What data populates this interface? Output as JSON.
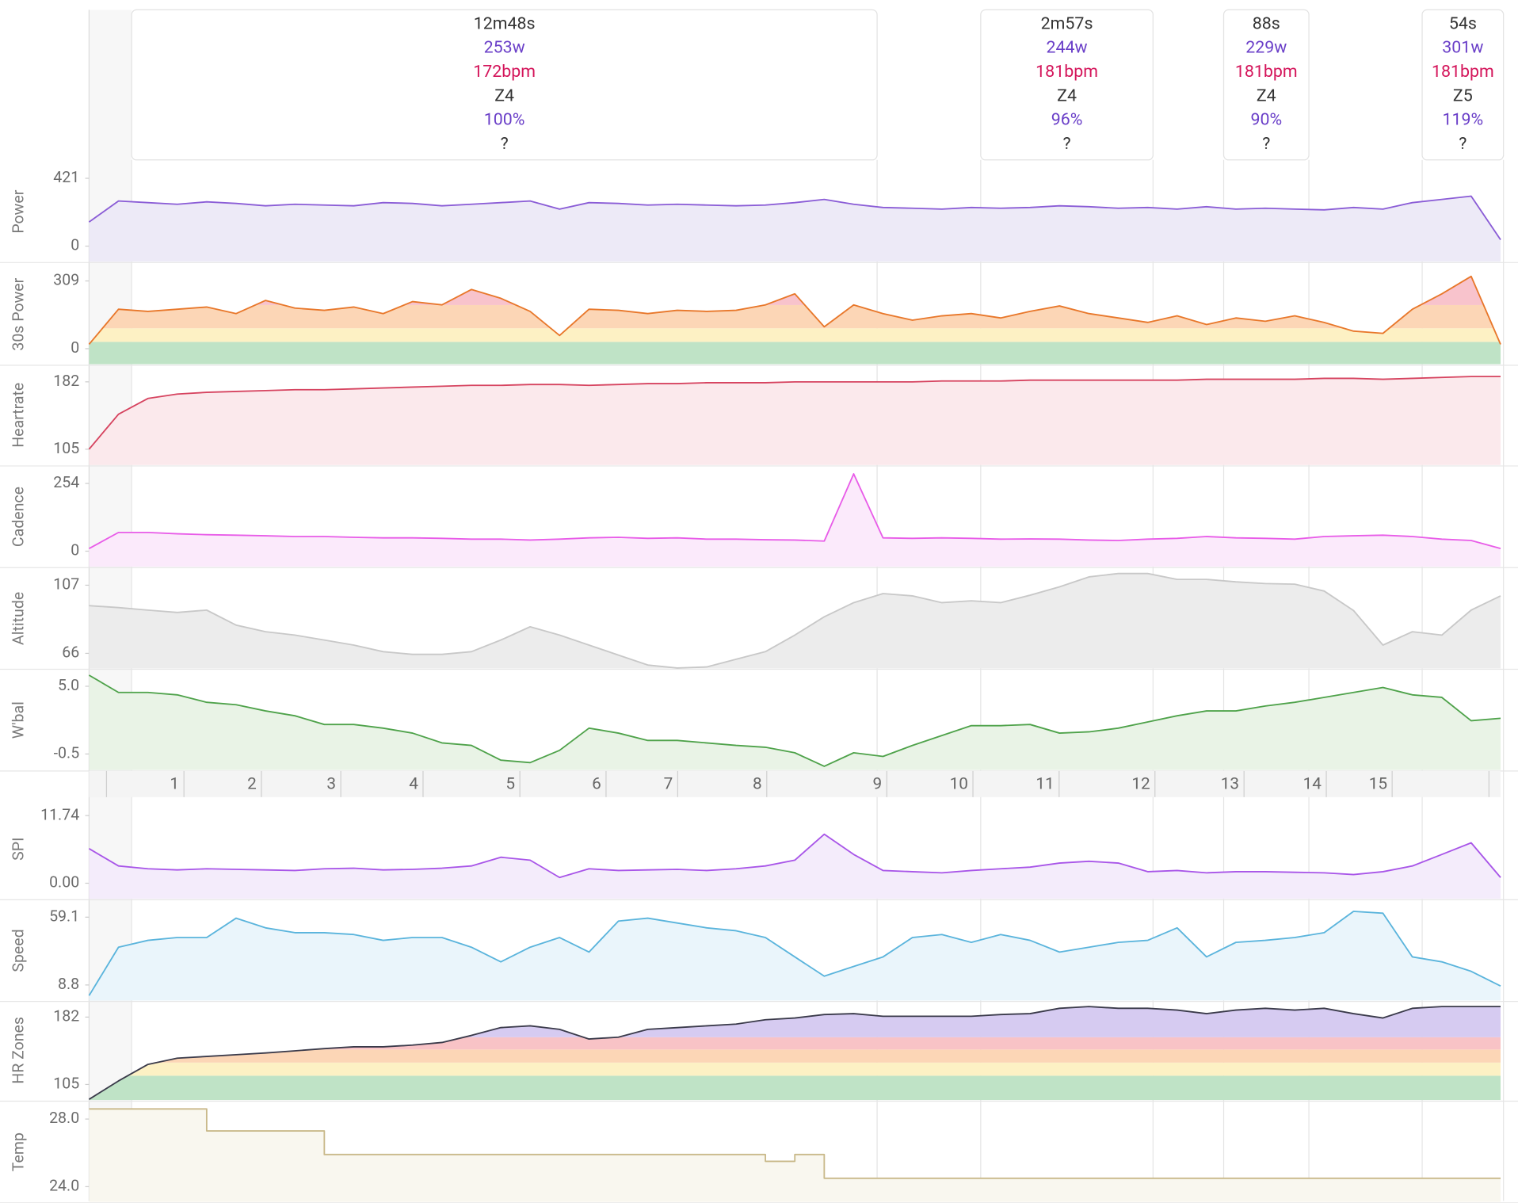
{
  "intervals": [
    {
      "duration": "12m48s",
      "power": "253w",
      "heartrate": "172bpm",
      "zone": "Z4",
      "percent": "100%",
      "note": "?"
    },
    {
      "duration": "2m57s",
      "power": "244w",
      "heartrate": "181bpm",
      "zone": "Z4",
      "percent": "96%",
      "note": "?"
    },
    {
      "duration": "88s",
      "power": "229w",
      "heartrate": "181bpm",
      "zone": "Z4",
      "percent": "90%",
      "note": "?"
    },
    {
      "duration": "54s",
      "power": "301w",
      "heartrate": "181bpm",
      "zone": "Z5",
      "percent": "119%",
      "note": "?"
    }
  ],
  "panels": [
    {
      "type": "line",
      "label": "Power",
      "color": "#8a5cd6",
      "fill": "#edeaf7",
      "ylim": [
        -96,
        523
      ],
      "yticks": [
        421,
        0
      ],
      "values": [
        150,
        280,
        270,
        260,
        275,
        265,
        250,
        260,
        255,
        250,
        270,
        265,
        250,
        260,
        270,
        280,
        230,
        270,
        265,
        255,
        260,
        255,
        250,
        255,
        270,
        290,
        260,
        240,
        235,
        230,
        240,
        235,
        240,
        250,
        245,
        235,
        240,
        230,
        245,
        230,
        235,
        230,
        225,
        240,
        230,
        270,
        290,
        310,
        40
      ]
    },
    {
      "type": "zones",
      "label": "30s Power",
      "color": "#e8772a",
      "ylim": [
        -71,
        384
      ],
      "yticks": [
        309,
        0
      ],
      "zone_bounds": [
        31,
        93,
        199
      ],
      "zone_colors": [
        "#bfe3c6",
        "#fdf1c4",
        "#fcd6b6",
        "#f8c3cc"
      ],
      "values": [
        20,
        180,
        170,
        180,
        190,
        160,
        220,
        185,
        175,
        190,
        160,
        215,
        200,
        270,
        230,
        170,
        60,
        180,
        175,
        160,
        175,
        170,
        175,
        200,
        250,
        100,
        200,
        160,
        130,
        150,
        160,
        140,
        170,
        195,
        160,
        140,
        120,
        150,
        110,
        140,
        125,
        150,
        120,
        80,
        70,
        180,
        250,
        330,
        20
      ]
    },
    {
      "type": "line",
      "label": "Heartrate",
      "color": "#d6435f",
      "fill": "#fbe9ec",
      "ylim": [
        87,
        201
      ],
      "yticks": [
        182,
        105
      ],
      "values": [
        105,
        145,
        163,
        168,
        170,
        171,
        172,
        173,
        173,
        174,
        175,
        176,
        177,
        178,
        178,
        179,
        179,
        178,
        179,
        180,
        180,
        181,
        181,
        181,
        182,
        182,
        182,
        182,
        182,
        183,
        183,
        183,
        184,
        184,
        184,
        184,
        184,
        184,
        185,
        185,
        185,
        185,
        186,
        186,
        185,
        186,
        187,
        188,
        188
      ]
    },
    {
      "type": "line",
      "label": "Cadence",
      "color": "#e85ce8",
      "fill": "#fbeafb",
      "ylim": [
        -58,
        316
      ],
      "yticks": [
        254,
        0
      ],
      "values": [
        10,
        70,
        70,
        65,
        62,
        60,
        58,
        55,
        55,
        52,
        50,
        50,
        48,
        45,
        45,
        42,
        45,
        50,
        52,
        48,
        50,
        45,
        45,
        43,
        42,
        38,
        290,
        50,
        48,
        50,
        48,
        45,
        46,
        45,
        42,
        40,
        45,
        48,
        55,
        50,
        48,
        45,
        55,
        58,
        60,
        55,
        45,
        40,
        10
      ]
    },
    {
      "type": "line",
      "label": "Altitude",
      "color": "#c8c8c8",
      "fill": "#ececec",
      "ylim": [
        57,
        117
      ],
      "yticks": [
        107,
        66
      ],
      "values": [
        94.7,
        93.5,
        92,
        90.6,
        92,
        83,
        79,
        77,
        74,
        71,
        67,
        65.4,
        65.4,
        67,
        74,
        82,
        77,
        71,
        65,
        59,
        57.2,
        57.8,
        62.5,
        67,
        77,
        88,
        96.5,
        102,
        100.6,
        96.5,
        97.6,
        96.5,
        101,
        106,
        112,
        114,
        114,
        110.5,
        110.5,
        109,
        108,
        107.6,
        103.5,
        91.8,
        71,
        79,
        77,
        92,
        100.6
      ]
    },
    {
      "type": "line",
      "label": "W'bal",
      "color": "#4ea24a",
      "fill": "#e9f3e6",
      "ylim": [
        -1.8,
        6.3
      ],
      "yticks": [
        {
          "value": 5.0,
          "label": "5.0"
        },
        -0.5
      ],
      "values": [
        5.9,
        4.5,
        4.5,
        4.3,
        3.7,
        3.5,
        3.0,
        2.6,
        1.9,
        1.9,
        1.6,
        1.2,
        0.4,
        0.2,
        -1.0,
        -1.2,
        -0.2,
        1.6,
        1.2,
        0.6,
        0.6,
        0.4,
        0.2,
        0.05,
        -0.4,
        -1.5,
        -0.4,
        -0.7,
        0.2,
        1.0,
        1.8,
        1.8,
        1.9,
        1.2,
        1.3,
        1.6,
        2.1,
        2.6,
        3.0,
        3.0,
        3.4,
        3.7,
        4.1,
        4.5,
        4.9,
        4.3,
        4.1,
        2.2,
        2.4
      ]
    },
    {
      "type": "line",
      "label": "SPI",
      "color": "#a855e8",
      "fill": "#f4ecfb",
      "ylim": [
        -2.7,
        14.6
      ],
      "yticks": [
        {
          "value": 11.74,
          "label": "11.74"
        },
        {
          "value": 0,
          "label": "0.00"
        }
      ],
      "values": [
        6,
        3,
        2.5,
        2.3,
        2.5,
        2.4,
        2.3,
        2.2,
        2.5,
        2.6,
        2.3,
        2.4,
        2.6,
        3,
        4.5,
        4,
        1,
        2.5,
        2.2,
        2.3,
        2.4,
        2.2,
        2.5,
        3,
        4,
        8.5,
        5,
        2.2,
        2,
        1.8,
        2.2,
        2.5,
        2.8,
        3.5,
        3.8,
        3.5,
        2,
        2.2,
        1.8,
        2,
        2,
        1.9,
        1.8,
        1.5,
        2,
        3,
        5,
        7,
        1
      ]
    },
    {
      "type": "line",
      "label": "Speed",
      "color": "#5ab4dc",
      "fill": "#eaf5fb",
      "ylim": [
        -2.7,
        71.3
      ],
      "yticks": [
        59.1,
        8.8
      ],
      "values": [
        0.9,
        36.8,
        41.9,
        44,
        44,
        58.4,
        51.2,
        47.6,
        47.6,
        46.2,
        41.9,
        44,
        44,
        36.8,
        26,
        36.8,
        44,
        33.2,
        56.2,
        58.4,
        54.8,
        51.2,
        49,
        44,
        29.6,
        15.3,
        22.5,
        29.6,
        44,
        46.2,
        40.4,
        46.2,
        41.9,
        33.2,
        36.8,
        40.4,
        41.9,
        51.2,
        29.6,
        40.4,
        41.9,
        44,
        47.6,
        63.4,
        62,
        29.6,
        26,
        18.9,
        8
      ]
    },
    {
      "type": "zones",
      "label": "HR Zones",
      "color": "#3a3a4a",
      "ylim": [
        87,
        201
      ],
      "yticks": [
        182,
        105
      ],
      "zone_bounds": [
        115,
        130,
        145,
        159
      ],
      "zone_colors": [
        "#bfe3c6",
        "#fdf1c4",
        "#fcd6b6",
        "#f8c3c6",
        "#d6cbf1",
        "#c6c6cc"
      ],
      "values": [
        88,
        109,
        128,
        135,
        137,
        139,
        141,
        143.5,
        146,
        148,
        148,
        150,
        153,
        161,
        170,
        172,
        168,
        157,
        159,
        168,
        170,
        172,
        174,
        179,
        181,
        185,
        186,
        183,
        183,
        183,
        183,
        185,
        186,
        192,
        194,
        192,
        192,
        190,
        186,
        190,
        192,
        190,
        192,
        186,
        181,
        192,
        194,
        194,
        194
      ]
    },
    {
      "type": "step",
      "label": "Temp",
      "color": "#c9b98a",
      "fill": "#f9f7ef",
      "ylim": [
        23.1,
        29.0
      ],
      "yticks": [
        {
          "value": 28.0,
          "label": "28.0"
        },
        {
          "value": 24.0,
          "label": "24.0"
        }
      ],
      "values": [
        28.6,
        28.6,
        28.6,
        28.6,
        27.3,
        27.3,
        27.3,
        27.3,
        25.9,
        25.9,
        25.9,
        25.9,
        25.9,
        25.9,
        25.9,
        25.9,
        25.9,
        25.9,
        25.9,
        25.9,
        25.9,
        25.9,
        25.9,
        25.5,
        25.9,
        24.5,
        24.5,
        24.5,
        24.5,
        24.5,
        24.5,
        24.5,
        24.5,
        24.5,
        24.5,
        24.5,
        24.5,
        24.5,
        24.5,
        24.5,
        24.5,
        24.5,
        24.5,
        24.5,
        24.5,
        24.5,
        24.5,
        24.5,
        24.5
      ]
    }
  ],
  "laps": [
    "1",
    "2",
    "3",
    "4",
    "5",
    "6",
    "7",
    "8",
    "9",
    "10",
    "11",
    "12",
    "13",
    "14",
    "15"
  ]
}
